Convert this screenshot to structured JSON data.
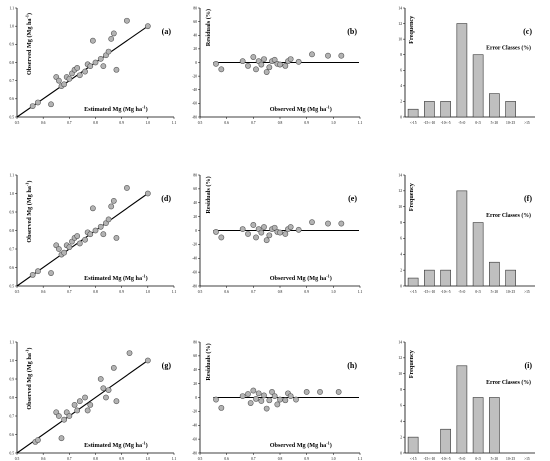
{
  "figure": {
    "row_labels": [
      "Estimated Mg (Mg ha",
      "Observed Mg (Mg ha",
      "Residuals (%)",
      "Observed Mg (Mg ha",
      "Frequency",
      "Error Classes (%)"
    ],
    "unit_sup": "-1",
    "unit_close": ")"
  },
  "chart_data": [
    {
      "panel": "(a)",
      "type": "scatter",
      "xlabel": "Estimated Mg (Mg ha-1)",
      "ylabel": "Observed Mg (Mg ha-1)",
      "xlim": [
        0.5,
        1.1
      ],
      "ylim": [
        0.5,
        1.1
      ],
      "xticks": [
        0.5,
        0.6,
        0.7,
        0.8,
        0.9,
        1.0,
        1.1
      ],
      "xtick_labels": [
        "0.5",
        "0.6",
        "0.7",
        "0.8",
        "0.9",
        "1.0",
        "1.1"
      ],
      "yticks": [
        0.5,
        0.6,
        0.7,
        0.8,
        0.9,
        1.0,
        1.1
      ],
      "ytick_labels": [
        "0.5",
        "0.6",
        "0.7",
        "0.8",
        "0.9",
        "1.0",
        "1.1"
      ],
      "line": [
        [
          0.5,
          0.5
        ],
        [
          1.0,
          1.0
        ]
      ],
      "x": [
        0.56,
        0.58,
        0.63,
        0.65,
        0.66,
        0.67,
        0.68,
        0.69,
        0.7,
        0.71,
        0.72,
        0.73,
        0.74,
        0.76,
        0.77,
        0.78,
        0.79,
        0.8,
        0.82,
        0.83,
        0.84,
        0.85,
        0.86,
        0.87,
        0.88,
        0.92,
        1.0
      ],
      "y": [
        0.56,
        0.58,
        0.57,
        0.72,
        0.7,
        0.67,
        0.68,
        0.72,
        0.71,
        0.74,
        0.76,
        0.77,
        0.73,
        0.75,
        0.79,
        0.78,
        0.92,
        0.8,
        0.82,
        0.78,
        0.84,
        0.86,
        0.93,
        0.96,
        0.76,
        1.03,
        1.0
      ]
    },
    {
      "panel": "(b)",
      "type": "scatter",
      "xlabel": "Observed Mg (Mg ha-1)",
      "ylabel": "Residuals (%)",
      "xlim": [
        0.5,
        1.1
      ],
      "ylim": [
        -80,
        80
      ],
      "xticks": [
        0.5,
        0.6,
        0.7,
        0.8,
        0.9,
        1.0,
        1.1
      ],
      "xtick_labels": [
        "0.5",
        "0.6",
        "0.7",
        "0.8",
        "0.9",
        "1.0",
        "1.1"
      ],
      "yticks": [
        -80,
        -60,
        -40,
        -20,
        0,
        20,
        40,
        60,
        80
      ],
      "ytick_labels": [
        "-80",
        "-60",
        "-40",
        "-20",
        "0",
        "20",
        "40",
        "60",
        "80"
      ],
      "hline": 0,
      "x": [
        0.56,
        0.58,
        0.66,
        0.68,
        0.7,
        0.71,
        0.72,
        0.73,
        0.74,
        0.75,
        0.76,
        0.77,
        0.78,
        0.79,
        0.8,
        0.82,
        0.83,
        0.84,
        0.87,
        0.92,
        0.98,
        1.03
      ],
      "y": [
        -2,
        -10,
        2,
        -5,
        8,
        -10,
        2,
        -3,
        5,
        -14,
        -7,
        2,
        4,
        -2,
        -3,
        -5,
        2,
        5,
        1,
        12,
        10,
        10
      ]
    },
    {
      "panel": "(c)",
      "type": "bar",
      "xlabel": "Error Classes (%)",
      "ylabel": "Frequency",
      "categories": [
        "<-15",
        "-15<-10",
        "-10<-5",
        "-5<0",
        "0<5",
        "5<10",
        "10<15",
        ">15"
      ],
      "values": [
        1,
        2,
        2,
        12,
        8,
        3,
        2,
        0
      ],
      "ylim": [
        0,
        14
      ],
      "yticks": [
        0,
        2,
        4,
        6,
        8,
        10,
        12,
        14
      ],
      "ytick_labels": [
        "0",
        "2",
        "4",
        "6",
        "8",
        "10",
        "12",
        "14"
      ]
    },
    {
      "panel": "(d)",
      "type": "scatter",
      "xlabel": "Estimated Mg (Mg ha-1)",
      "ylabel": "Observed Mg (Mg ha-1)",
      "xlim": [
        0.5,
        1.1
      ],
      "ylim": [
        0.5,
        1.1
      ],
      "xticks": [
        0.5,
        0.6,
        0.7,
        0.8,
        0.9,
        1.0,
        1.1
      ],
      "xtick_labels": [
        "0.5",
        "0.6",
        "0.7",
        "0.8",
        "0.9",
        "1.0",
        "1.1"
      ],
      "yticks": [
        0.5,
        0.6,
        0.7,
        0.8,
        0.9,
        1.0,
        1.1
      ],
      "ytick_labels": [
        "0.5",
        "0.6",
        "0.7",
        "0.8",
        "0.9",
        "1.0",
        "1.1"
      ],
      "line": [
        [
          0.5,
          0.5
        ],
        [
          1.0,
          1.0
        ]
      ],
      "x": [
        0.56,
        0.58,
        0.63,
        0.65,
        0.66,
        0.67,
        0.68,
        0.69,
        0.7,
        0.71,
        0.72,
        0.73,
        0.74,
        0.76,
        0.77,
        0.78,
        0.79,
        0.8,
        0.82,
        0.83,
        0.84,
        0.85,
        0.86,
        0.87,
        0.88,
        0.92,
        1.0
      ],
      "y": [
        0.56,
        0.58,
        0.57,
        0.72,
        0.7,
        0.67,
        0.68,
        0.72,
        0.71,
        0.74,
        0.76,
        0.77,
        0.73,
        0.75,
        0.79,
        0.78,
        0.92,
        0.8,
        0.82,
        0.78,
        0.84,
        0.86,
        0.93,
        0.96,
        0.76,
        1.03,
        1.0
      ]
    },
    {
      "panel": "(e)",
      "type": "scatter",
      "xlabel": "Observed Mg (Mg ha-1)",
      "ylabel": "Residuals (%)",
      "xlim": [
        0.5,
        1.1
      ],
      "ylim": [
        -80,
        80
      ],
      "xticks": [
        0.5,
        0.6,
        0.7,
        0.8,
        0.9,
        1.0,
        1.1
      ],
      "xtick_labels": [
        "0.5",
        "0.6",
        "0.7",
        "0.8",
        "0.9",
        "1.0",
        "1.1"
      ],
      "yticks": [
        -80,
        -60,
        -40,
        -20,
        0,
        20,
        40,
        60,
        80
      ],
      "ytick_labels": [
        "-80",
        "-60",
        "-40",
        "-20",
        "0",
        "20",
        "40",
        "60",
        "80"
      ],
      "hline": 0,
      "x": [
        0.56,
        0.58,
        0.66,
        0.68,
        0.7,
        0.71,
        0.72,
        0.73,
        0.74,
        0.75,
        0.76,
        0.77,
        0.78,
        0.79,
        0.8,
        0.82,
        0.83,
        0.84,
        0.87,
        0.92,
        0.98,
        1.03
      ],
      "y": [
        -2,
        -10,
        2,
        -5,
        8,
        -10,
        2,
        -3,
        5,
        -14,
        -7,
        2,
        4,
        -2,
        -3,
        -5,
        2,
        5,
        1,
        12,
        10,
        10
      ]
    },
    {
      "panel": "(f)",
      "type": "bar",
      "xlabel": "Error Classes (%)",
      "ylabel": "Frequency",
      "categories": [
        "<-15",
        "-15<-10",
        "-10<-5",
        "-5<0",
        "0<5",
        "5<10",
        "10<15",
        ">15"
      ],
      "values": [
        1,
        2,
        2,
        12,
        8,
        3,
        2,
        0
      ],
      "ylim": [
        0,
        14
      ],
      "yticks": [
        0,
        2,
        4,
        6,
        8,
        10,
        12,
        14
      ],
      "ytick_labels": [
        "0",
        "2",
        "4",
        "6",
        "8",
        "10",
        "12",
        "14"
      ]
    },
    {
      "panel": "(g)",
      "type": "scatter",
      "xlabel": "Estimated Mg (Mg ha-1)",
      "ylabel": "Observed Mg (Mg ha-1)",
      "xlim": [
        0.5,
        1.1
      ],
      "ylim": [
        0.5,
        1.1
      ],
      "xticks": [
        0.5,
        0.6,
        0.7,
        0.8,
        0.9,
        1.0,
        1.1
      ],
      "xtick_labels": [
        "0.5",
        "0.6",
        "0.7",
        "0.8",
        "0.9",
        "1.0",
        "1.1"
      ],
      "yticks": [
        0.5,
        0.6,
        0.7,
        0.8,
        0.9,
        1.0,
        1.1
      ],
      "ytick_labels": [
        "0.5",
        "0.6",
        "0.7",
        "0.8",
        "0.9",
        "1.0",
        "1.1"
      ],
      "line": [
        [
          0.5,
          0.5
        ],
        [
          1.0,
          1.0
        ]
      ],
      "x": [
        0.57,
        0.58,
        0.65,
        0.66,
        0.67,
        0.68,
        0.69,
        0.7,
        0.72,
        0.73,
        0.74,
        0.76,
        0.77,
        0.78,
        0.82,
        0.83,
        0.84,
        0.85,
        0.87,
        0.88,
        0.93,
        1.0
      ],
      "y": [
        0.56,
        0.57,
        0.72,
        0.7,
        0.58,
        0.68,
        0.72,
        0.7,
        0.76,
        0.73,
        0.78,
        0.8,
        0.73,
        0.76,
        0.9,
        0.85,
        0.8,
        0.84,
        0.96,
        0.78,
        1.04,
        1.0
      ]
    },
    {
      "panel": "(h)",
      "type": "scatter",
      "xlabel": "Observed Mg (Mg ha-1)",
      "ylabel": "Residuals (%)",
      "xlim": [
        0.5,
        1.1
      ],
      "ylim": [
        -80,
        80
      ],
      "xticks": [
        0.5,
        0.6,
        0.7,
        0.8,
        0.9,
        1.0,
        1.1
      ],
      "xtick_labels": [
        "0.5",
        "0.6",
        "0.7",
        "0.8",
        "0.9",
        "1.0",
        "1.1"
      ],
      "yticks": [
        -80,
        -60,
        -40,
        -20,
        0,
        20,
        40,
        60,
        80
      ],
      "ytick_labels": [
        "-80",
        "-60",
        "-40",
        "-20",
        "0",
        "20",
        "40",
        "60",
        "80"
      ],
      "hline": 0,
      "x": [
        0.56,
        0.58,
        0.66,
        0.68,
        0.69,
        0.7,
        0.71,
        0.72,
        0.73,
        0.74,
        0.75,
        0.76,
        0.77,
        0.78,
        0.79,
        0.8,
        0.82,
        0.83,
        0.84,
        0.86,
        0.9,
        0.95,
        1.02
      ],
      "y": [
        -3,
        -15,
        2,
        5,
        -8,
        10,
        -2,
        6,
        -5,
        3,
        -16,
        -4,
        8,
        2,
        -10,
        -3,
        -4,
        6,
        2,
        -3,
        8,
        8,
        8
      ]
    },
    {
      "panel": "(i)",
      "type": "bar",
      "xlabel": "Error Classes (%)",
      "ylabel": "Frequency",
      "categories": [
        "<-15",
        "-15<-10",
        "-10<-5",
        "-5<0",
        "0<5",
        "5<10",
        "10<15",
        ">15"
      ],
      "values": [
        2,
        0,
        3,
        11,
        7,
        7,
        0,
        0
      ],
      "ylim": [
        0,
        14
      ],
      "yticks": [
        0,
        2,
        4,
        6,
        8,
        10,
        12,
        14
      ],
      "ytick_labels": [
        "0",
        "2",
        "4",
        "6",
        "8",
        "10",
        "12",
        "14"
      ]
    }
  ]
}
